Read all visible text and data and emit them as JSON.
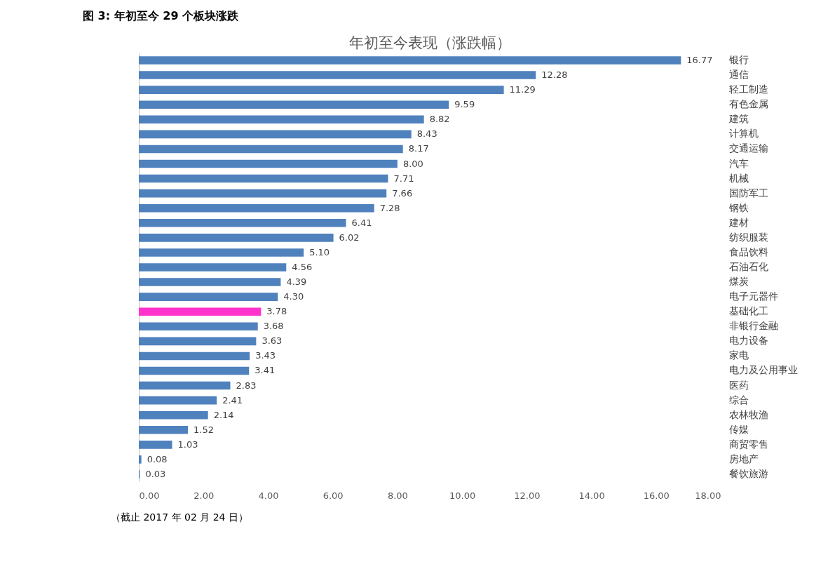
{
  "chart_data": {
    "type": "bar",
    "orientation": "horizontal",
    "title": "图 3:  年初至今 29 个板块涨跌",
    "subtitle": "年初至今表现（涨跌幅）",
    "categories": [
      "银行",
      "通信",
      "轻工制造",
      "有色金属",
      "建筑",
      "计算机",
      "交通运输",
      "汽车",
      "机械",
      "国防军工",
      "钢铁",
      "建材",
      "纺织服装",
      "食品饮料",
      "石油石化",
      "煤炭",
      "电子元器件",
      "基础化工",
      "非银行金融",
      "电力设备",
      "家电",
      "电力及公用事业",
      "医药",
      "综合",
      "农林牧渔",
      "传媒",
      "商贸零售",
      "房地产",
      "餐饮旅游"
    ],
    "values": [
      16.77,
      12.28,
      11.29,
      9.59,
      8.82,
      8.43,
      8.17,
      8.0,
      7.71,
      7.66,
      7.28,
      6.41,
      6.02,
      5.1,
      4.56,
      4.39,
      4.3,
      3.78,
      3.68,
      3.63,
      3.43,
      3.41,
      2.83,
      2.41,
      2.14,
      1.52,
      1.03,
      0.08,
      0.03
    ],
    "colors": [
      "#4f81bd",
      "#4f81bd",
      "#4f81bd",
      "#4f81bd",
      "#4f81bd",
      "#4f81bd",
      "#4f81bd",
      "#4f81bd",
      "#4f81bd",
      "#4f81bd",
      "#4f81bd",
      "#4f81bd",
      "#4f81bd",
      "#4f81bd",
      "#4f81bd",
      "#4f81bd",
      "#4f81bd",
      "#ff33cc",
      "#4f81bd",
      "#4f81bd",
      "#4f81bd",
      "#4f81bd",
      "#4f81bd",
      "#4f81bd",
      "#4f81bd",
      "#4f81bd",
      "#4f81bd",
      "#4f81bd",
      "#4f81bd"
    ],
    "xlim": [
      0,
      18
    ],
    "xticks": [
      {
        "value": 0,
        "label": "0.00"
      },
      {
        "value": 2,
        "label": "2.00"
      },
      {
        "value": 4,
        "label": "4.00"
      },
      {
        "value": 6,
        "label": "6.00"
      },
      {
        "value": 8,
        "label": "8.00"
      },
      {
        "value": 10,
        "label": "10.00"
      },
      {
        "value": 12,
        "label": "12.00"
      },
      {
        "value": 14,
        "label": "14.00"
      },
      {
        "value": 16,
        "label": "16.00"
      },
      {
        "value": 18,
        "label": "18.00"
      }
    ],
    "value_labels": [
      "16.77",
      "12.28",
      "11.29",
      "9.59",
      "8.82",
      "8.43",
      "8.17",
      "8.00",
      "7.71",
      "7.66",
      "7.28",
      "6.41",
      "6.02",
      "5.10",
      "4.56",
      "4.39",
      "4.30",
      "3.78",
      "3.68",
      "3.63",
      "3.43",
      "3.41",
      "2.83",
      "2.41",
      "2.14",
      "1.52",
      "1.03",
      "0.08",
      "0.03"
    ],
    "grid": false,
    "annotations": [
      "（截止 2017 年 02 月 24 日）"
    ]
  }
}
